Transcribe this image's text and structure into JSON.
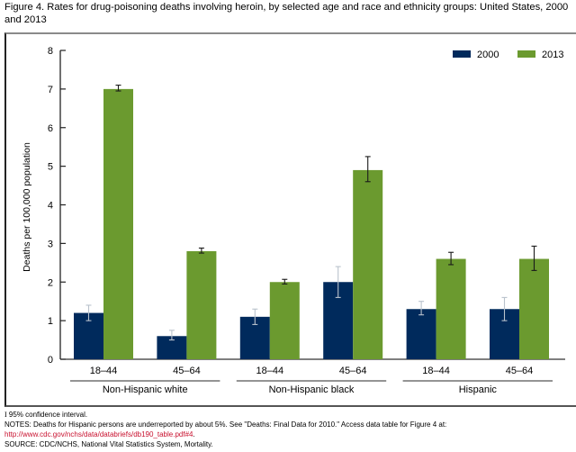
{
  "title": "Figure 4. Rates for drug-poisoning deaths involving heroin, by selected age and race and ethnicity groups: United States, 2000 and 2013",
  "footer": {
    "ci_note": "95% confidence interval.",
    "ci_symbol": "I",
    "notes_prefix": "NOTES: Deaths for Hispanic persons are underreported by about 5%. See \"Deaths: Final Data for 2010.\" Access data table for Figure 4 at: ",
    "notes_link": "http://www.cdc.gov/nchs/data/databriefs/db190_table.pdf#4",
    "notes_suffix": ".",
    "source": "SOURCE: CDC/NCHS, National Vital Statistics System, Mortality."
  },
  "colors": {
    "series_2000": "#002a5c",
    "series_2013": "#6b9a2f",
    "link": "#c8102e"
  },
  "chart_data": {
    "type": "bar",
    "title": "Rates for drug-poisoning deaths involving heroin, by selected age and race and ethnicity groups: United States, 2000 and 2013",
    "xlabel": "",
    "ylabel": "Deaths per 100,000 population",
    "ylim": [
      0,
      8
    ],
    "yticks": [
      0,
      1,
      2,
      3,
      4,
      5,
      6,
      7,
      8
    ],
    "grid": false,
    "legend_position": "top-right",
    "groups": [
      {
        "label": "Non-Hispanic white",
        "categories": [
          "18–44",
          "45–64"
        ]
      },
      {
        "label": "Non-Hispanic black",
        "categories": [
          "18–44",
          "45–64"
        ]
      },
      {
        "label": "Hispanic",
        "categories": [
          "18–44",
          "45–64"
        ]
      }
    ],
    "categories": [
      "18–44",
      "45–64",
      "18–44",
      "45–64",
      "18–44",
      "45–64"
    ],
    "series": [
      {
        "name": "2000",
        "values": [
          1.2,
          0.6,
          1.1,
          2.0,
          1.3,
          1.3
        ],
        "ci_low": [
          1.0,
          0.5,
          0.9,
          1.6,
          1.15,
          1.0
        ],
        "ci_high": [
          1.4,
          0.75,
          1.3,
          2.4,
          1.5,
          1.6
        ]
      },
      {
        "name": "2013",
        "values": [
          7.0,
          2.8,
          2.0,
          4.9,
          2.6,
          2.6
        ],
        "ci_low": [
          6.95,
          2.75,
          1.95,
          4.6,
          2.45,
          2.3
        ],
        "ci_high": [
          7.1,
          2.88,
          2.07,
          5.25,
          2.77,
          2.93
        ]
      }
    ]
  }
}
